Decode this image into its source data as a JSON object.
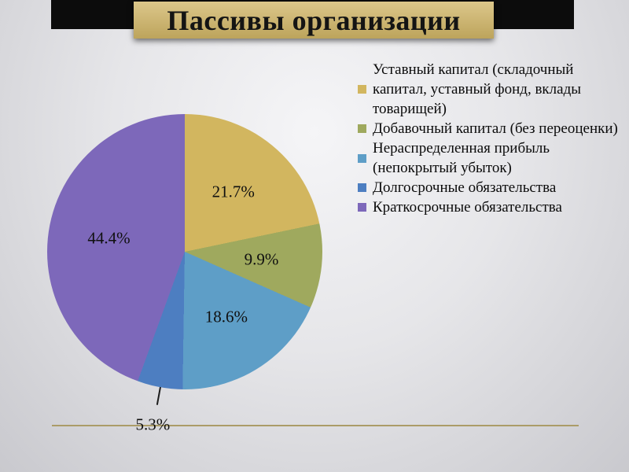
{
  "slide": {
    "title": "Пассивы организации"
  },
  "chart_data": {
    "type": "pie",
    "title": "Пассивы организации",
    "legend_position": "right",
    "start_angle_deg": 0,
    "direction": "clockwise",
    "slices": [
      {
        "label": "Уставный капитал (складочный капитал, уставный фонд, вклады товарищей)",
        "value": 21.7,
        "display": "21.7%",
        "color": "#d2b65f"
      },
      {
        "label": "Добавочный капитал (без переоценки)",
        "value": 9.9,
        "display": "9.9%",
        "color": "#9fa95e"
      },
      {
        "label": "Нераспределенная прибыль (непокрытый убыток)",
        "value": 18.6,
        "display": "18.6%",
        "color": "#5e9ec7"
      },
      {
        "label": "Долгосрочные обязательства",
        "value": 5.3,
        "display": "5.3%",
        "color": "#4d7ec1"
      },
      {
        "label": "Краткосрочные обязательства",
        "value": 44.4,
        "display": "44.4%",
        "color": "#7d68ba"
      }
    ]
  }
}
